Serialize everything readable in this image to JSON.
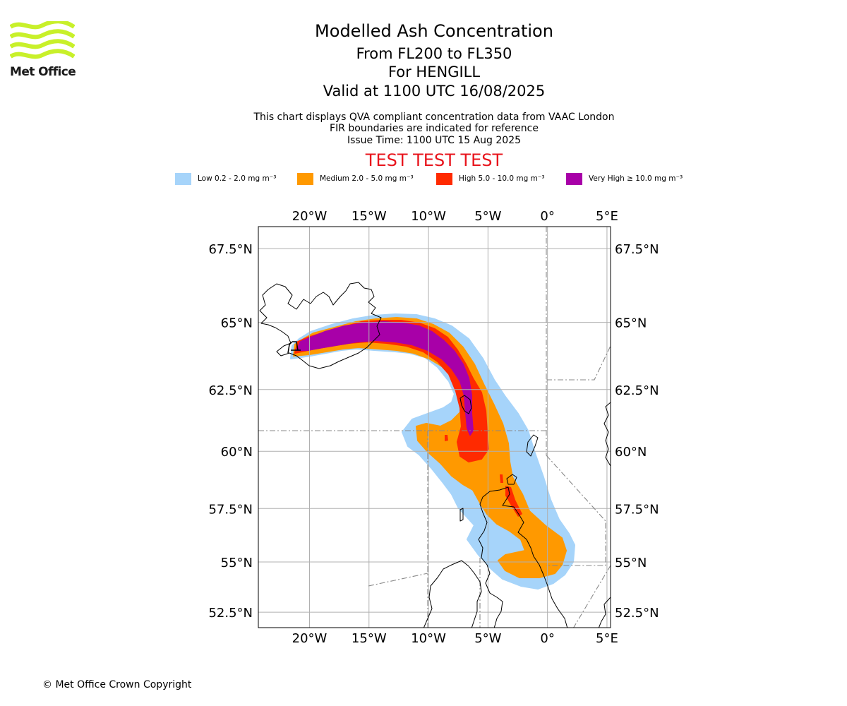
{
  "logo": {
    "text": "Met Office",
    "brand_color": "#c8f02a"
  },
  "header": {
    "title": "Modelled Ash Concentration",
    "levels": "From FL200 to FL350",
    "volcano": "For HENGILL",
    "valid": "Valid at 1100 UTC 16/08/2025"
  },
  "info": {
    "line1": "This chart displays QVA compliant concentration data from VAAC London",
    "line2": "FIR boundaries are indicated for reference",
    "line3": "Issue Time: 1100 UTC 15 Aug 2025"
  },
  "banner": {
    "text": "TEST TEST TEST",
    "color": "#e8141c"
  },
  "legend": [
    {
      "name": "legend-low",
      "label": "Low 0.2 - 2.0 mg m⁻³",
      "color": "#a6d4fa"
    },
    {
      "name": "legend-medium",
      "label": "Medium 2.0 - 5.0 mg m⁻³",
      "color": "#ff9900"
    },
    {
      "name": "legend-high",
      "label": "High 5.0 - 10.0 mg m⁻³",
      "color": "#ff2a00"
    },
    {
      "name": "legend-very-high",
      "label": "Very High ≥ 10.0 mg m⁻³",
      "color": "#a800a8"
    }
  ],
  "map": {
    "lon_range": [
      -24.3,
      5.3
    ],
    "lat_range": [
      51.7,
      68.2
    ],
    "lon_ticks": [
      {
        "value": -20,
        "label": "20°W"
      },
      {
        "value": -15,
        "label": "15°W"
      },
      {
        "value": -10,
        "label": "10°W"
      },
      {
        "value": -5,
        "label": "5°W"
      },
      {
        "value": 0,
        "label": "0°"
      },
      {
        "value": 5,
        "label": "5°E"
      }
    ],
    "lat_ticks": [
      {
        "value": 67.5,
        "label": "67.5°N"
      },
      {
        "value": 65,
        "label": "65°N"
      },
      {
        "value": 62.5,
        "label": "62.5°N"
      },
      {
        "value": 60,
        "label": "60°N"
      },
      {
        "value": 57.5,
        "label": "57.5°N"
      },
      {
        "value": 55,
        "label": "55°N"
      },
      {
        "value": 52.5,
        "label": "52.5°N"
      }
    ],
    "grid": true,
    "colors": {
      "grid": "#b0b0b0",
      "coast": "#000000",
      "fir": "#888888"
    }
  },
  "copyright": "© Met Office Crown Copyright"
}
